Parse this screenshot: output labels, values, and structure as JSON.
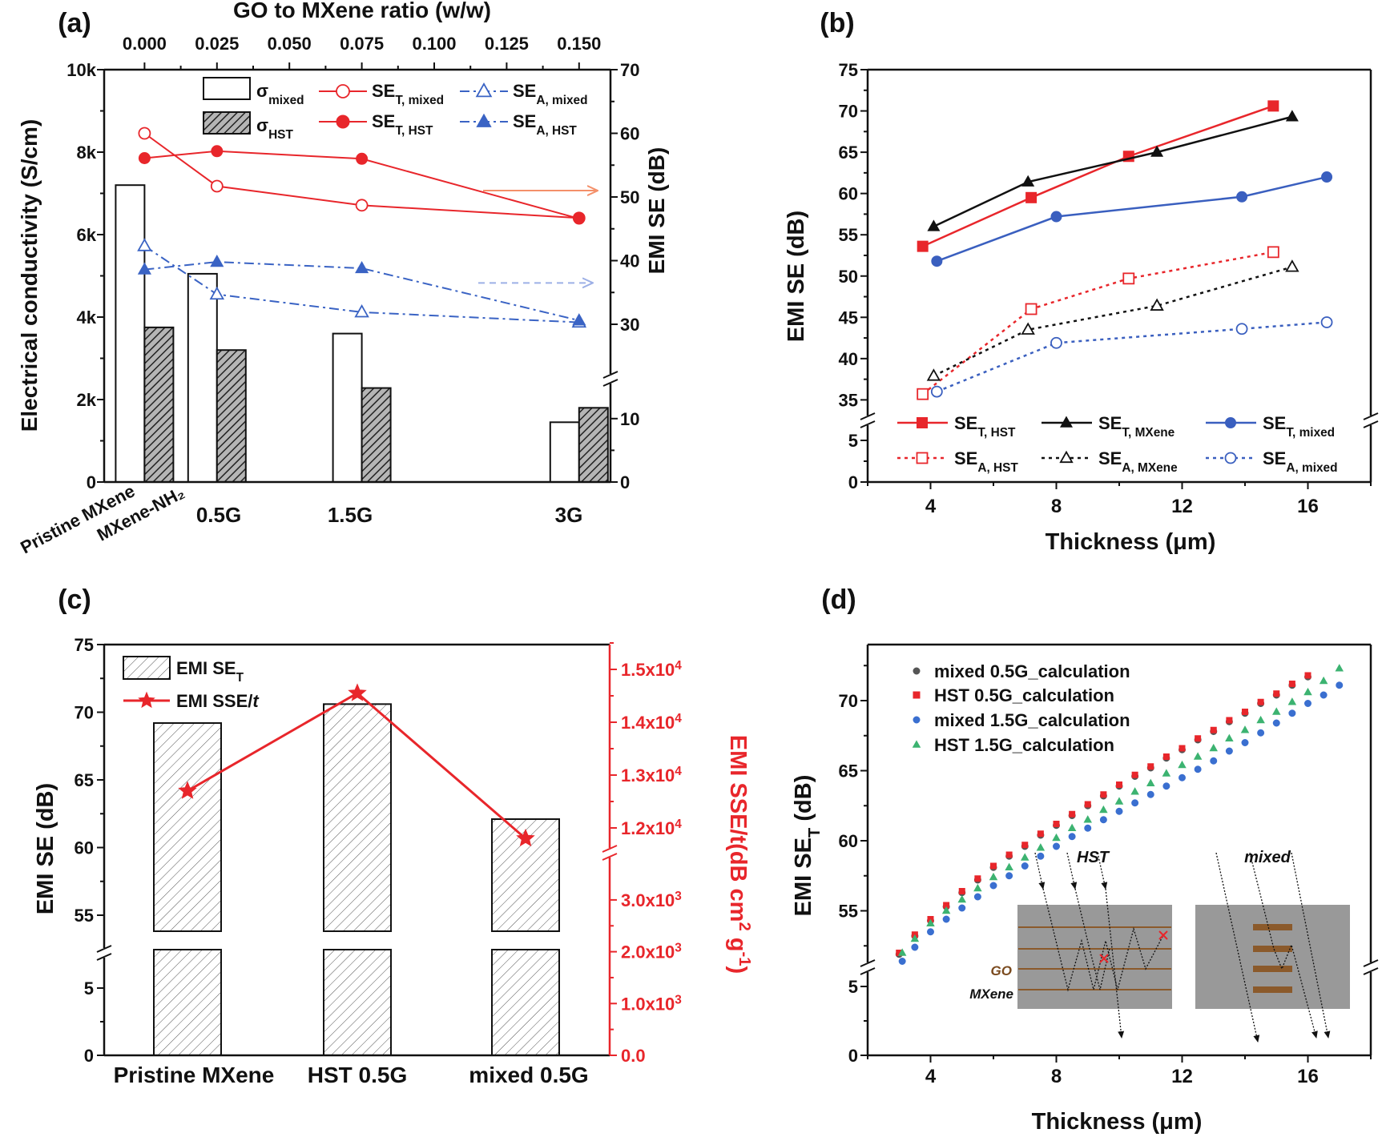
{
  "figure": {
    "panel_labels": [
      "(a)",
      "(b)",
      "(c)",
      "(d)"
    ]
  },
  "chart_data": [
    {
      "type": "bar+line",
      "top_xlabel": "GO to MXene ratio (w/w)",
      "top_xlim": [
        -0.014,
        0.161
      ],
      "top_xticks": [
        {
          "v": 0.0,
          "label": "0.000"
        },
        {
          "v": 0.025,
          "label": "0.025"
        },
        {
          "v": 0.05,
          "label": "0.050"
        },
        {
          "v": 0.075,
          "label": "0.075"
        },
        {
          "v": 0.1,
          "label": "0.100"
        },
        {
          "v": 0.125,
          "label": "0.125"
        },
        {
          "v": 0.15,
          "label": "0.150"
        }
      ],
      "ylabel_left": "Electrical conductivity (S/cm)",
      "ylim_left": [
        0,
        10000
      ],
      "yticks_left": [
        {
          "v": 0,
          "label": "0"
        },
        {
          "v": 2000,
          "label": "2k"
        },
        {
          "v": 4000,
          "label": "4k"
        },
        {
          "v": 6000,
          "label": "6k"
        },
        {
          "v": 8000,
          "label": "8k"
        },
        {
          "v": 10000,
          "label": "10k"
        }
      ],
      "ylabel_right": "EMI SE (dB)",
      "right_axis_segments": [
        [
          0,
          16
        ],
        [
          21,
          70
        ]
      ],
      "yticks_right": [
        {
          "v": 0,
          "label": "0"
        },
        {
          "v": 10,
          "label": "10"
        },
        {
          "v": 30,
          "label": "30"
        },
        {
          "v": 40,
          "label": "40"
        },
        {
          "v": 50,
          "label": "50"
        },
        {
          "v": 60,
          "label": "60"
        },
        {
          "v": 70,
          "label": "70"
        }
      ],
      "category_labels": [
        "Pristine MXene",
        "MXene-NH₂",
        "0.5G",
        "1.5G",
        "3G"
      ],
      "bars": [
        {
          "label": [
            {
              "t": "σ"
            },
            {
              "sub": "mixed"
            }
          ],
          "fill": "open",
          "ratio": [
            0,
            0.025,
            0.075,
            0.15
          ],
          "values": [
            7200,
            5050,
            3600,
            1450
          ]
        },
        {
          "label": [
            {
              "t": "σ"
            },
            {
              "sub": "HST"
            }
          ],
          "fill": "hatched",
          "ratio": [
            0,
            0.025,
            0.075,
            0.15
          ],
          "values": [
            3750,
            3200,
            2280,
            1800
          ]
        }
      ],
      "lines": [
        {
          "label": [
            {
              "t": "SE"
            },
            {
              "sub": "T, mixed"
            }
          ],
          "color": "#e8262b",
          "marker": "circle-open",
          "style": "solid",
          "ratio": [
            0,
            0.025,
            0.075,
            0.15
          ],
          "values": [
            60.0,
            51.7,
            48.7,
            46.7
          ]
        },
        {
          "label": [
            {
              "t": "SE"
            },
            {
              "sub": "T, HST"
            }
          ],
          "color": "#e8262b",
          "marker": "circle",
          "style": "solid",
          "ratio": [
            0,
            0.025,
            0.075,
            0.15
          ],
          "values": [
            56.1,
            57.2,
            56.0,
            46.6
          ]
        },
        {
          "label": [
            {
              "t": "SE"
            },
            {
              "sub": "A, mixed"
            }
          ],
          "color": "#3a63c4",
          "marker": "triangle-open",
          "style": "dashdot",
          "ratio": [
            0,
            0.025,
            0.075,
            0.15
          ],
          "values": [
            42.3,
            34.7,
            31.9,
            30.3
          ]
        },
        {
          "label": [
            {
              "t": "SE"
            },
            {
              "sub": "A, HST"
            }
          ],
          "color": "#3a63c4",
          "marker": "triangle",
          "style": "dashdot",
          "ratio": [
            0,
            0.025,
            0.075,
            0.15
          ],
          "values": [
            38.6,
            39.8,
            38.8,
            30.6
          ]
        }
      ],
      "arrows": [
        {
          "at": 51,
          "direction": "right",
          "color": "#f4906a",
          "style": "solid"
        },
        {
          "at": 36.5,
          "direction": "right",
          "color": "#9db0e6",
          "style": "dashed"
        }
      ]
    },
    {
      "type": "line",
      "xlabel": "Thickness (μm)",
      "ylabel": "EMI SE (dB)",
      "xlim": [
        2,
        18
      ],
      "xticks": [
        {
          "v": 4,
          "label": "4"
        },
        {
          "v": 8,
          "label": "8"
        },
        {
          "v": 12,
          "label": "12"
        },
        {
          "v": 16,
          "label": "16"
        }
      ],
      "y_segments": [
        [
          0,
          7
        ],
        [
          33,
          75
        ]
      ],
      "yticks": [
        {
          "v": 0,
          "label": "0"
        },
        {
          "v": 5,
          "label": "5"
        },
        {
          "v": 35,
          "label": "35"
        },
        {
          "v": 40,
          "label": "40"
        },
        {
          "v": 45,
          "label": "45"
        },
        {
          "v": 50,
          "label": "50"
        },
        {
          "v": 55,
          "label": "55"
        },
        {
          "v": 60,
          "label": "60"
        },
        {
          "v": 65,
          "label": "65"
        },
        {
          "v": 70,
          "label": "70"
        },
        {
          "v": 75,
          "label": "75"
        }
      ],
      "legend": "bottom, inside",
      "series": [
        {
          "label": [
            {
              "t": "SE"
            },
            {
              "sub": "T, HST"
            }
          ],
          "color": "#e8262b",
          "marker": "square",
          "style": "solid",
          "x": [
            3.75,
            7.2,
            10.3,
            14.9
          ],
          "y": [
            53.6,
            59.5,
            64.5,
            70.6
          ]
        },
        {
          "label": [
            {
              "t": "SE"
            },
            {
              "sub": "T, MXene"
            }
          ],
          "color": "#111111",
          "marker": "triangle",
          "style": "solid",
          "x": [
            4.1,
            7.1,
            11.2,
            15.5
          ],
          "y": [
            56.0,
            61.4,
            65.0,
            69.3
          ]
        },
        {
          "label": [
            {
              "t": "SE"
            },
            {
              "sub": "T, mixed"
            }
          ],
          "color": "#3a5fbf",
          "marker": "circle",
          "style": "solid",
          "x": [
            4.2,
            8.0,
            13.9,
            16.6
          ],
          "y": [
            51.8,
            57.2,
            59.6,
            62.0
          ]
        },
        {
          "label": [
            {
              "t": "SE"
            },
            {
              "sub": "A, HST"
            }
          ],
          "color": "#e8262b",
          "marker": "square-open",
          "style": "dotted",
          "x": [
            3.75,
            7.2,
            10.3,
            14.9
          ],
          "y": [
            35.7,
            46.0,
            49.7,
            52.9
          ]
        },
        {
          "label": [
            {
              "t": "SE"
            },
            {
              "sub": "A, MXene"
            }
          ],
          "color": "#111111",
          "marker": "triangle-open",
          "style": "dotted",
          "x": [
            4.1,
            7.1,
            11.2,
            15.5
          ],
          "y": [
            37.9,
            43.5,
            46.4,
            51.1
          ]
        },
        {
          "label": [
            {
              "t": "SE"
            },
            {
              "sub": "A, mixed"
            }
          ],
          "color": "#3a5fbf",
          "marker": "circle-open",
          "style": "dotted",
          "x": [
            4.2,
            8.0,
            13.9,
            16.6
          ],
          "y": [
            36.0,
            41.9,
            43.6,
            44.4
          ]
        }
      ]
    },
    {
      "type": "bar+line",
      "categories": [
        "Pristine MXene",
        "HST 0.5G",
        "mixed 0.5G"
      ],
      "ylabel_left": "EMI SE (dB)",
      "left_segments": [
        [
          0,
          7
        ],
        [
          52,
          75
        ]
      ],
      "yticks_left": [
        {
          "v": 0,
          "label": "0"
        },
        {
          "v": 5,
          "label": "5"
        },
        {
          "v": 55,
          "label": "55"
        },
        {
          "v": 60,
          "label": "60"
        },
        {
          "v": 65,
          "label": "65"
        },
        {
          "v": 70,
          "label": "70"
        },
        {
          "v": 75,
          "label": "75"
        }
      ],
      "ylabel_right": [
        {
          "t": "EMI SSE/t(dB cm"
        },
        {
          "sup": "2"
        },
        {
          "t": " g"
        },
        {
          "sup": "-1"
        },
        {
          "t": ")"
        }
      ],
      "right_color": "#e8262b",
      "right_segments": [
        [
          0,
          3700
        ],
        [
          11600,
          15470
        ]
      ],
      "yticks_right": [
        {
          "v": 0,
          "mant": "0.0",
          "exp": ""
        },
        {
          "v": 1000,
          "mant": "1.0x10",
          "exp": "3"
        },
        {
          "v": 2000,
          "mant": "2.0x10",
          "exp": "3"
        },
        {
          "v": 3000,
          "mant": "3.0x10",
          "exp": "3"
        },
        {
          "v": 12000,
          "mant": "1.2x10",
          "exp": "4"
        },
        {
          "v": 13000,
          "mant": "1.3x10",
          "exp": "4"
        },
        {
          "v": 14000,
          "mant": "1.4x10",
          "exp": "4"
        },
        {
          "v": 15000,
          "mant": "1.5x10",
          "exp": "4"
        }
      ],
      "bar_series": {
        "label": [
          {
            "t": "EMI SE"
          },
          {
            "sub": "T"
          }
        ],
        "fill": "hatched",
        "values": [
          69.2,
          70.6,
          62.1
        ]
      },
      "line_series": {
        "label": [
          {
            "t": "EMI SSE/"
          },
          {
            "it": "t"
          }
        ],
        "color": "#e8262b",
        "marker": "star",
        "values": [
          12700,
          14550,
          11800
        ]
      }
    },
    {
      "type": "scatter",
      "xlabel": "Thickness (μm)",
      "ylabel": [
        {
          "t": "EMI SE"
        },
        {
          "sub": "T"
        },
        {
          "t": " (dB)"
        }
      ],
      "xlim": [
        2,
        18
      ],
      "xticks": [
        {
          "v": 4,
          "label": "4"
        },
        {
          "v": 8,
          "label": "8"
        },
        {
          "v": 12,
          "label": "12"
        },
        {
          "v": 16,
          "label": "16"
        }
      ],
      "y_segments": [
        [
          0,
          6.3
        ],
        [
          51.4,
          74
        ]
      ],
      "yticks": [
        {
          "v": 0,
          "label": "0"
        },
        {
          "v": 5,
          "label": "5"
        },
        {
          "v": 55,
          "label": "55"
        },
        {
          "v": 60,
          "label": "60"
        },
        {
          "v": 65,
          "label": "65"
        },
        {
          "v": 70,
          "label": "70"
        }
      ],
      "legend": "top-left",
      "series": [
        {
          "name": "mixed 0.5G_calculation",
          "color": "#555555",
          "marker": "circle",
          "x": [
            3,
            3.5,
            4,
            4.5,
            5,
            5.5,
            6,
            6.5,
            7,
            7.5,
            8,
            8.5,
            9,
            9.5,
            10,
            10.5,
            11,
            11.5,
            12,
            12.5,
            13,
            13.5,
            14,
            14.5,
            15,
            15.5,
            16
          ],
          "y": [
            51.9,
            53.2,
            54.3,
            55.3,
            56.3,
            57.2,
            58.1,
            58.9,
            59.6,
            60.4,
            61.1,
            61.8,
            62.5,
            63.2,
            63.9,
            64.6,
            65.2,
            65.9,
            66.5,
            67.2,
            67.8,
            68.5,
            69.1,
            69.8,
            70.4,
            71.1,
            71.7
          ]
        },
        {
          "name": "HST 0.5G_calculation",
          "color": "#e8262b",
          "marker": "square",
          "x": [
            3,
            3.5,
            4,
            4.5,
            5,
            5.5,
            6,
            6.5,
            7,
            7.5,
            8,
            8.5,
            9,
            9.5,
            10,
            10.5,
            11,
            11.5,
            12,
            12.5,
            13,
            13.5,
            14,
            14.5,
            15,
            15.5,
            16
          ],
          "y": [
            52.0,
            53.3,
            54.4,
            55.4,
            56.4,
            57.3,
            58.2,
            59.0,
            59.7,
            60.5,
            61.2,
            61.9,
            62.6,
            63.3,
            64.0,
            64.7,
            65.3,
            66.0,
            66.6,
            67.3,
            67.9,
            68.6,
            69.2,
            69.9,
            70.5,
            71.2,
            71.8
          ]
        },
        {
          "name": "mixed 1.5G_calculation",
          "color": "#3a6fd0",
          "marker": "circle",
          "x": [
            3.1,
            3.5,
            4,
            4.5,
            5,
            5.5,
            6,
            6.5,
            7,
            7.5,
            8,
            8.5,
            9,
            9.5,
            10,
            10.5,
            11,
            11.5,
            12,
            12.5,
            13,
            13.5,
            14,
            14.5,
            15,
            15.5,
            16,
            16.5,
            17
          ],
          "y": [
            51.4,
            52.4,
            53.5,
            54.4,
            55.2,
            56.0,
            56.8,
            57.5,
            58.2,
            58.9,
            59.6,
            60.3,
            60.9,
            61.5,
            62.1,
            62.7,
            63.3,
            63.9,
            64.5,
            65.1,
            65.7,
            66.4,
            67.0,
            67.7,
            68.4,
            69.1,
            69.8,
            70.4,
            71.1
          ]
        },
        {
          "name": "HST 1.5G_calculation",
          "color": "#3cb371",
          "marker": "triangle",
          "x": [
            3.1,
            3.5,
            4,
            4.5,
            5,
            5.5,
            6,
            6.5,
            7,
            7.5,
            8,
            8.5,
            9,
            9.5,
            10,
            10.5,
            11,
            11.5,
            12,
            12.5,
            13,
            13.5,
            14,
            14.5,
            15,
            15.5,
            16,
            16.5,
            17
          ],
          "y": [
            52.0,
            53.0,
            54.1,
            55.0,
            55.8,
            56.6,
            57.4,
            58.1,
            58.8,
            59.5,
            60.2,
            60.9,
            61.5,
            62.2,
            62.8,
            63.5,
            64.1,
            64.8,
            65.4,
            66.0,
            66.6,
            67.3,
            67.9,
            68.6,
            69.2,
            69.9,
            70.6,
            71.4,
            72.3
          ]
        }
      ],
      "inset": {
        "hst_label": "HST",
        "mixed_label": "mixed",
        "go_label": "GO",
        "mxene_label": "MXene",
        "layer_color": "#8b5a2b",
        "background": "#999999"
      }
    }
  ]
}
